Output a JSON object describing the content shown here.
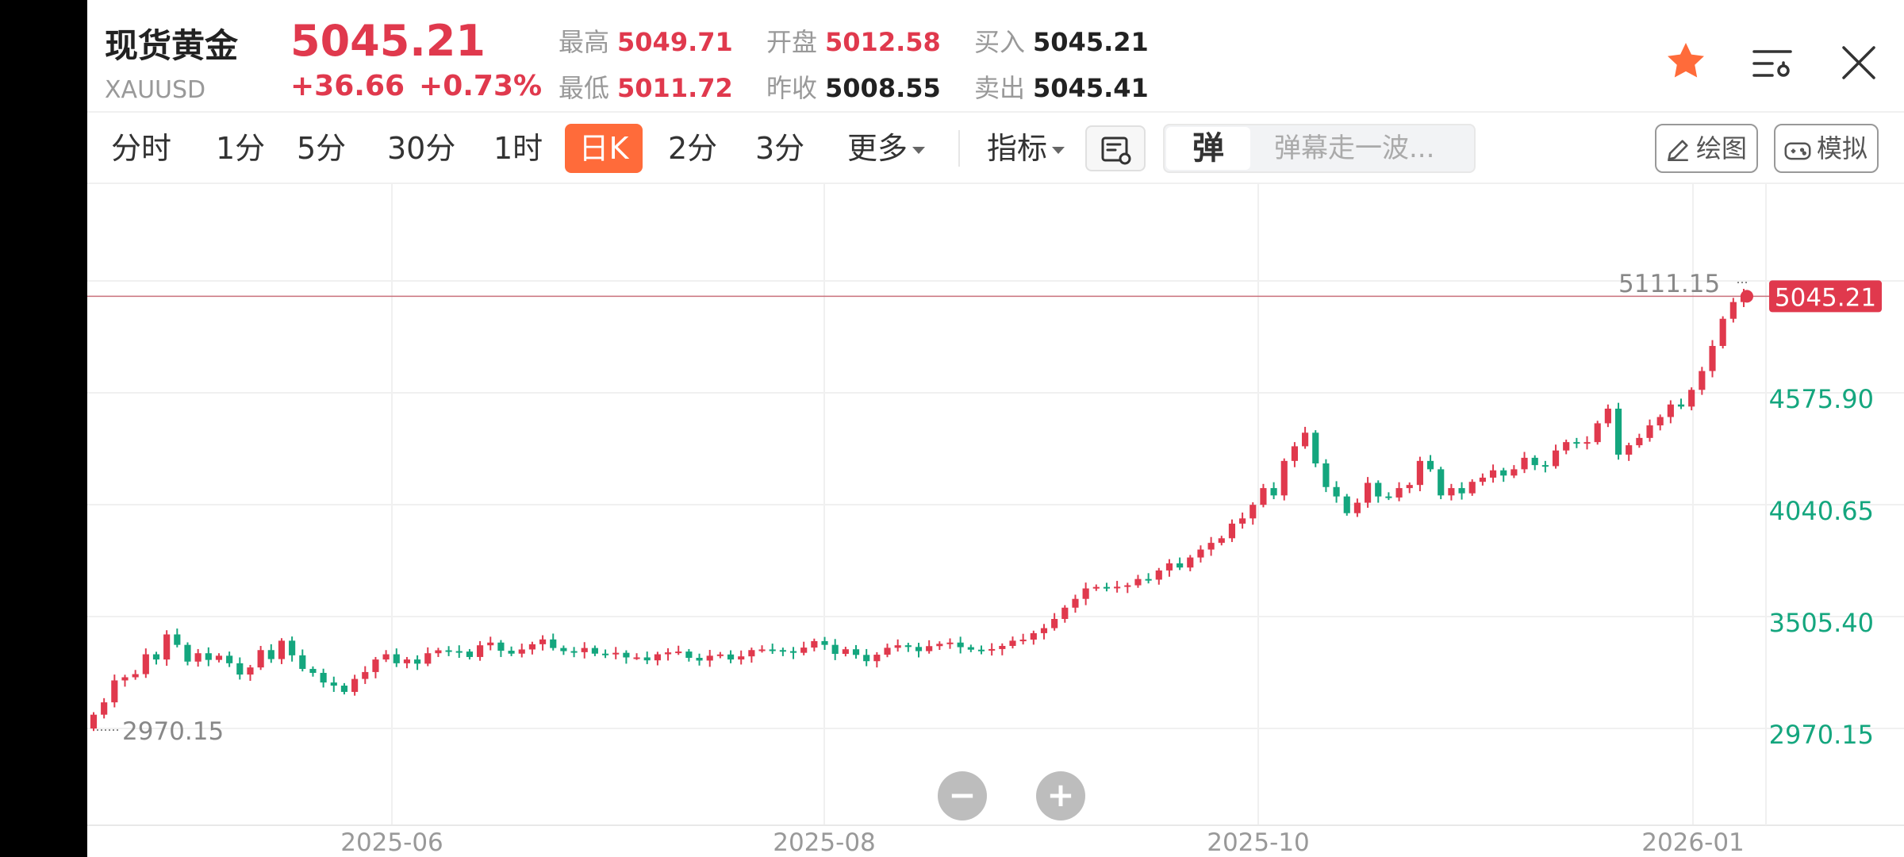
{
  "quote": {
    "name": "现货黄金",
    "code": "XAUUSD",
    "price": "5045.21",
    "change": "+36.66",
    "change_pct": "+0.73%",
    "stats": [
      {
        "key": "high",
        "label": "最高",
        "value": "5049.71",
        "color": "#e0394d"
      },
      {
        "key": "low",
        "label": "最低",
        "value": "5011.72",
        "color": "#e0394d"
      },
      {
        "key": "open",
        "label": "开盘",
        "value": "5012.58",
        "color": "#e0394d"
      },
      {
        "key": "prev_close",
        "label": "昨收",
        "value": "5008.55",
        "color": "#222222"
      },
      {
        "key": "bid",
        "label": "买入",
        "value": "5045.21",
        "color": "#222222"
      },
      {
        "key": "ask",
        "label": "卖出",
        "value": "5045.41",
        "color": "#222222"
      }
    ]
  },
  "header_icons": {
    "favorite": "star-icon",
    "settings": "list-settings-icon",
    "close": "close-icon"
  },
  "toolbar": {
    "periods": [
      "分时",
      "1分",
      "5分",
      "30分",
      "1时",
      "日K",
      "2分",
      "3分"
    ],
    "active_period": "日K",
    "more_label": "更多",
    "indicator_label": "指标",
    "danmu_icon": "弹",
    "danmu_placeholder": "弹幕走一波...",
    "draw_label": "绘图",
    "sim_label": "模拟"
  },
  "zoom": {
    "out": "−",
    "in": "+"
  },
  "colors": {
    "up": "#e0394d",
    "down": "#14a67e",
    "accent": "#ff6b3a",
    "axis_text": "#14a67e"
  },
  "chart_data": {
    "type": "candlestick",
    "y_ticks": [
      "2970.15",
      "3505.40",
      "4040.65",
      "4575.90",
      "5111.15"
    ],
    "y_range": [
      2970.15,
      5111.15
    ],
    "x_ticks": [
      "2025-06",
      "2025-08",
      "2025-10",
      "2026-01"
    ],
    "high_label": "5111.15",
    "low_label": "2970.15",
    "last_price_label": "5045.21",
    "last_price": 5045.21,
    "start_date": "2025-04-10",
    "points": [
      [
        2970,
        3036
      ],
      [
        3036,
        3095
      ],
      [
        3095,
        3200
      ],
      [
        3200,
        3215
      ],
      [
        3215,
        3230
      ],
      [
        3230,
        3325
      ],
      [
        3325,
        3300
      ],
      [
        3300,
        3420
      ],
      [
        3420,
        3370
      ],
      [
        3370,
        3290
      ],
      [
        3290,
        3330
      ],
      [
        3330,
        3298
      ],
      [
        3298,
        3318
      ],
      [
        3318,
        3282
      ],
      [
        3282,
        3228
      ],
      [
        3228,
        3262
      ],
      [
        3262,
        3345
      ],
      [
        3345,
        3302
      ],
      [
        3302,
        3390
      ],
      [
        3390,
        3320
      ],
      [
        3320,
        3255
      ],
      [
        3255,
        3236
      ],
      [
        3236,
        3190
      ],
      [
        3190,
        3175
      ],
      [
        3175,
        3145
      ],
      [
        3145,
        3207
      ],
      [
        3207,
        3240
      ],
      [
        3240,
        3300
      ],
      [
        3300,
        3325
      ],
      [
        3325,
        3282
      ],
      [
        3282,
        3300
      ],
      [
        3300,
        3280
      ],
      [
        3280,
        3330
      ],
      [
        3330,
        3344
      ],
      [
        3344,
        3340
      ],
      [
        3340,
        3338
      ],
      [
        3338,
        3312
      ],
      [
        3312,
        3368
      ],
      [
        3368,
        3381
      ],
      [
        3381,
        3342
      ],
      [
        3342,
        3328
      ],
      [
        3328,
        3348
      ],
      [
        3348,
        3373
      ],
      [
        3373,
        3396
      ],
      [
        3396,
        3355
      ],
      [
        3355,
        3340
      ],
      [
        3340,
        3335
      ],
      [
        3335,
        3355
      ],
      [
        3355,
        3328
      ],
      [
        3328,
        3325
      ],
      [
        3325,
        3332
      ],
      [
        3332,
        3310
      ],
      [
        3310,
        3310
      ],
      [
        3310,
        3296
      ],
      [
        3296,
        3325
      ],
      [
        3325,
        3334
      ],
      [
        3334,
        3338
      ],
      [
        3338,
        3308
      ],
      [
        3308,
        3295
      ],
      [
        3295,
        3318
      ],
      [
        3318,
        3324
      ],
      [
        3324,
        3300
      ],
      [
        3300,
        3315
      ],
      [
        3315,
        3345
      ],
      [
        3345,
        3348
      ],
      [
        3348,
        3345
      ],
      [
        3345,
        3340
      ],
      [
        3340,
        3332
      ],
      [
        3332,
        3357
      ],
      [
        3357,
        3388
      ],
      [
        3388,
        3370
      ],
      [
        3370,
        3327
      ],
      [
        3327,
        3349
      ],
      [
        3349,
        3322
      ],
      [
        3322,
        3292
      ],
      [
        3292,
        3323
      ],
      [
        3323,
        3356
      ],
      [
        3356,
        3368
      ],
      [
        3368,
        3360
      ],
      [
        3360,
        3340
      ],
      [
        3340,
        3364
      ],
      [
        3364,
        3375
      ],
      [
        3375,
        3381
      ],
      [
        3381,
        3359
      ],
      [
        3359,
        3347
      ],
      [
        3347,
        3343
      ],
      [
        3343,
        3350
      ],
      [
        3350,
        3365
      ],
      [
        3365,
        3390
      ],
      [
        3390,
        3395
      ],
      [
        3395,
        3426
      ],
      [
        3426,
        3450
      ],
      [
        3450,
        3494
      ],
      [
        3494,
        3548
      ],
      [
        3548,
        3590
      ],
      [
        3590,
        3640
      ],
      [
        3640,
        3647
      ],
      [
        3647,
        3644
      ],
      [
        3644,
        3648
      ],
      [
        3648,
        3655
      ],
      [
        3655,
        3685
      ],
      [
        3685,
        3682
      ],
      [
        3682,
        3726
      ],
      [
        3726,
        3760
      ],
      [
        3760,
        3740
      ],
      [
        3740,
        3788
      ],
      [
        3788,
        3826
      ],
      [
        3826,
        3858
      ],
      [
        3858,
        3880
      ],
      [
        3880,
        3950
      ],
      [
        3950,
        3975
      ],
      [
        3975,
        4040
      ],
      [
        4040,
        4120
      ],
      [
        4120,
        4085
      ],
      [
        4085,
        4250
      ],
      [
        4250,
        4320
      ],
      [
        4320,
        4385
      ],
      [
        4385,
        4238
      ],
      [
        4238,
        4125
      ],
      [
        4125,
        4080
      ],
      [
        4080,
        4000
      ],
      [
        4000,
        4050
      ],
      [
        4050,
        4145
      ],
      [
        4145,
        4080
      ],
      [
        4080,
        4075
      ],
      [
        4075,
        4120
      ],
      [
        4120,
        4135
      ],
      [
        4135,
        4250
      ],
      [
        4250,
        4210
      ],
      [
        4210,
        4085
      ],
      [
        4085,
        4120
      ],
      [
        4120,
        4095
      ],
      [
        4095,
        4150
      ],
      [
        4150,
        4170
      ],
      [
        4170,
        4205
      ],
      [
        4205,
        4180
      ],
      [
        4180,
        4210
      ],
      [
        4210,
        4265
      ],
      [
        4265,
        4230
      ],
      [
        4230,
        4225
      ],
      [
        4225,
        4300
      ],
      [
        4300,
        4340
      ],
      [
        4340,
        4335
      ],
      [
        4335,
        4340
      ],
      [
        4340,
        4430
      ],
      [
        4430,
        4500
      ],
      [
        4500,
        4280
      ],
      [
        4280,
        4325
      ],
      [
        4325,
        4360
      ],
      [
        4360,
        4420
      ],
      [
        4420,
        4460
      ],
      [
        4460,
        4520
      ],
      [
        4520,
        4510
      ],
      [
        4510,
        4590
      ],
      [
        4590,
        4680
      ],
      [
        4680,
        4800
      ],
      [
        4800,
        4930
      ],
      [
        4930,
        5010
      ],
      [
        5010,
        5045.21
      ]
    ]
  }
}
